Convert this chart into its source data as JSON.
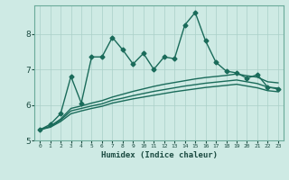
{
  "xlabel": "Humidex (Indice chaleur)",
  "background_color": "#ceeae4",
  "grid_color": "#aacfc8",
  "line_color": "#1a6b5a",
  "tick_color": "#1a4a40",
  "spine_color": "#6aaa9a",
  "xlim": [
    -0.5,
    23.5
  ],
  "ylim": [
    5.0,
    8.8
  ],
  "yticks": [
    5,
    6,
    7,
    8
  ],
  "xticks": [
    0,
    1,
    2,
    3,
    4,
    5,
    6,
    7,
    8,
    9,
    10,
    11,
    12,
    13,
    14,
    15,
    16,
    17,
    18,
    19,
    20,
    21,
    22,
    23
  ],
  "series": [
    {
      "x": [
        0,
        1,
        2,
        3,
        4,
        5,
        6,
        7,
        8,
        9,
        10,
        11,
        12,
        13,
        14,
        15,
        16,
        17,
        18,
        19,
        20,
        21,
        22,
        23
      ],
      "y": [
        5.3,
        5.45,
        5.75,
        6.8,
        6.05,
        7.35,
        7.35,
        7.9,
        7.55,
        7.15,
        7.45,
        7.0,
        7.35,
        7.3,
        8.25,
        8.6,
        7.8,
        7.2,
        6.95,
        6.9,
        6.75,
        6.85,
        6.5,
        6.45
      ],
      "marker": "D",
      "markersize": 2.5,
      "linewidth": 1.0,
      "zorder": 5
    },
    {
      "x": [
        0,
        1,
        2,
        3,
        4,
        5,
        6,
        7,
        8,
        9,
        10,
        11,
        12,
        13,
        14,
        15,
        16,
        17,
        18,
        19,
        20,
        21,
        22,
        23
      ],
      "y": [
        5.3,
        5.4,
        5.6,
        5.9,
        5.97,
        6.05,
        6.12,
        6.22,
        6.3,
        6.38,
        6.45,
        6.52,
        6.58,
        6.63,
        6.68,
        6.73,
        6.77,
        6.8,
        6.83,
        6.87,
        6.82,
        6.78,
        6.65,
        6.62
      ],
      "marker": null,
      "markersize": 0,
      "linewidth": 1.0,
      "zorder": 3
    },
    {
      "x": [
        0,
        1,
        2,
        3,
        4,
        5,
        6,
        7,
        8,
        9,
        10,
        11,
        12,
        13,
        14,
        15,
        16,
        17,
        18,
        19,
        20,
        21,
        22,
        23
      ],
      "y": [
        5.3,
        5.39,
        5.57,
        5.83,
        5.9,
        5.97,
        6.03,
        6.13,
        6.19,
        6.26,
        6.32,
        6.38,
        6.43,
        6.48,
        6.53,
        6.57,
        6.61,
        6.64,
        6.67,
        6.7,
        6.65,
        6.6,
        6.5,
        6.47
      ],
      "marker": null,
      "markersize": 0,
      "linewidth": 1.0,
      "zorder": 3
    },
    {
      "x": [
        0,
        1,
        2,
        3,
        4,
        5,
        6,
        7,
        8,
        9,
        10,
        11,
        12,
        13,
        14,
        15,
        16,
        17,
        18,
        19,
        20,
        21,
        22,
        23
      ],
      "y": [
        5.3,
        5.37,
        5.53,
        5.75,
        5.83,
        5.9,
        5.96,
        6.05,
        6.11,
        6.17,
        6.22,
        6.27,
        6.32,
        6.37,
        6.41,
        6.45,
        6.49,
        6.52,
        6.55,
        6.58,
        6.53,
        6.48,
        6.4,
        6.37
      ],
      "marker": null,
      "markersize": 0,
      "linewidth": 1.0,
      "zorder": 3
    }
  ]
}
